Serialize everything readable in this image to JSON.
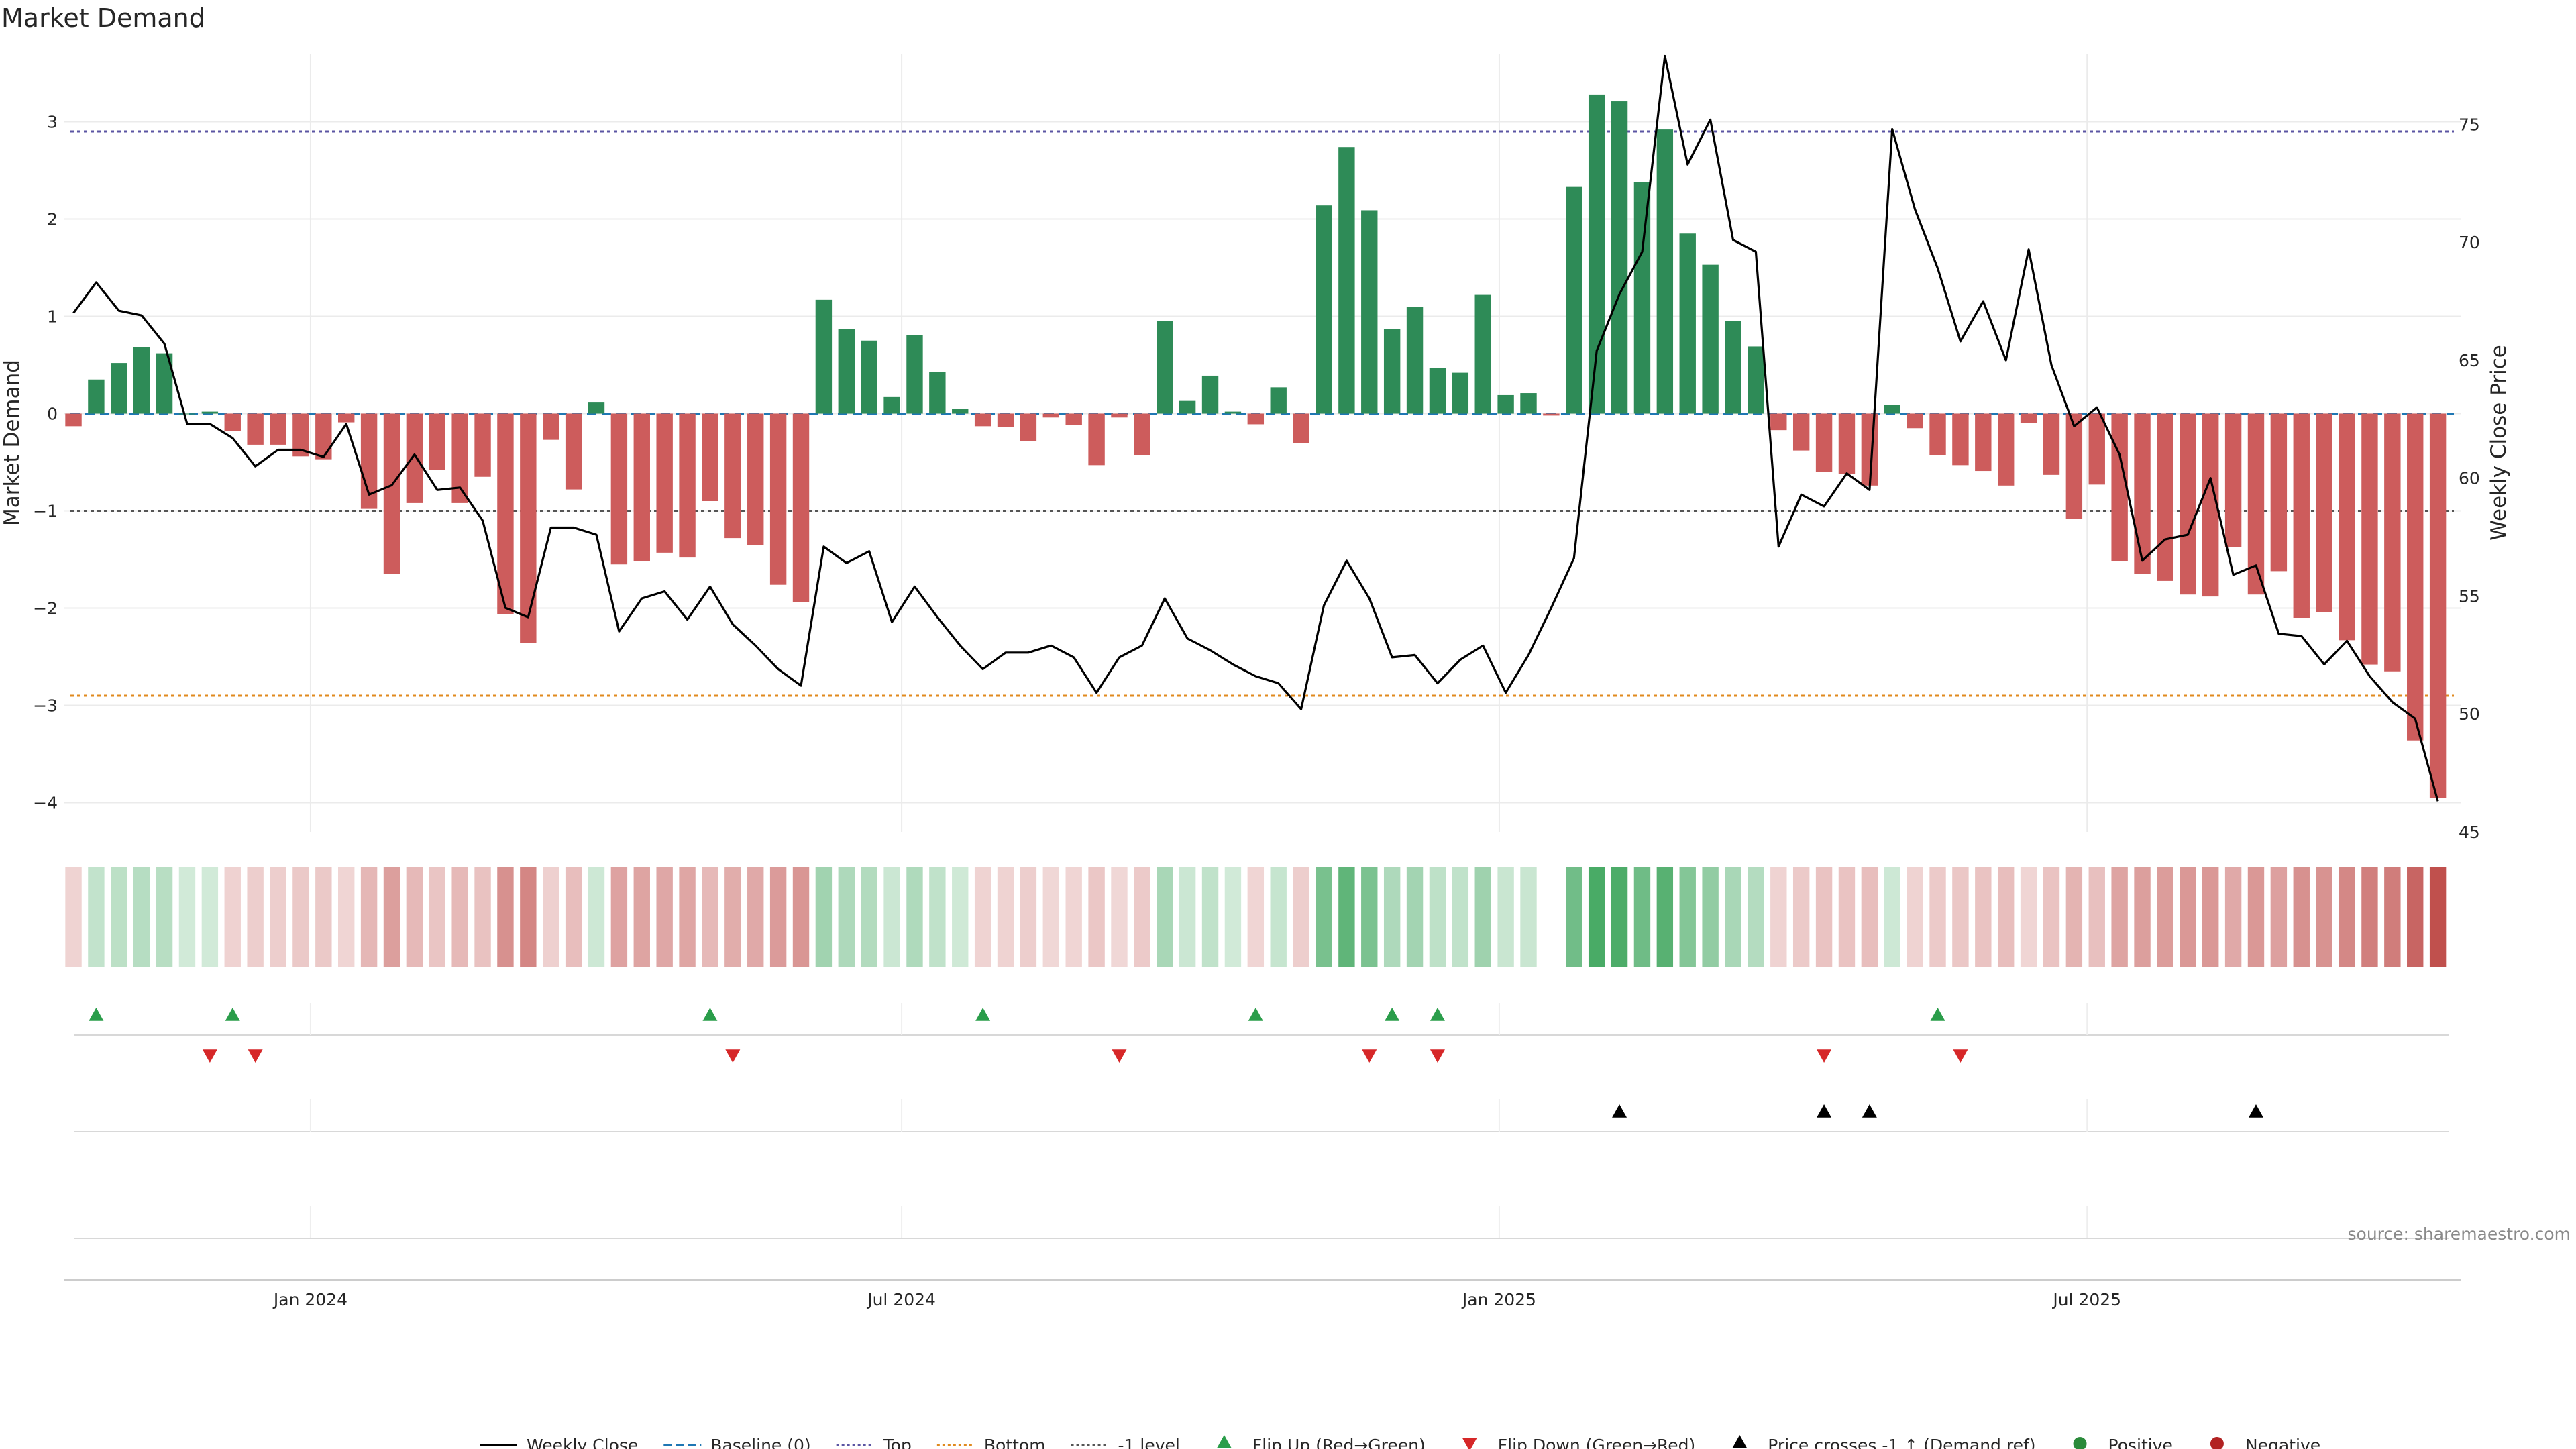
{
  "chart_data": {
    "type": "bar",
    "title": "Market Demand",
    "ylabel": "Market Demand",
    "y2label": "Weekly Close Price",
    "ylim": [
      -4.3,
      3.7
    ],
    "y2lim": [
      45,
      78
    ],
    "yticks": [
      -4,
      -3,
      -2,
      -1,
      0,
      1,
      2,
      3
    ],
    "y2ticks": [
      45,
      50,
      55,
      60,
      65,
      70,
      75
    ],
    "date_start": "2023-10-20",
    "week_interval_days": 7,
    "xlim": [
      "2023-10-17",
      "2025-10-24"
    ],
    "x_ticks": [
      {
        "label": "Jan 2024",
        "date": "2024-01-01"
      },
      {
        "label": "Jul 2024",
        "date": "2024-07-01"
      },
      {
        "label": "Jan 2025",
        "date": "2025-01-01"
      },
      {
        "label": "Jul 2025",
        "date": "2025-07-01"
      }
    ],
    "reference_lines": [
      {
        "name": "Baseline (0)",
        "value": 0,
        "color": "#1f77b4",
        "style": "dashed"
      },
      {
        "name": "Top",
        "value": 2.9,
        "color": "#5b55a3",
        "style": "dotted"
      },
      {
        "name": "Bottom",
        "value": -2.9,
        "color": "#e08a1e",
        "style": "dotted"
      },
      {
        "name": "-1 level",
        "value": -1,
        "color": "#555555",
        "style": "dotted"
      }
    ],
    "series": [
      {
        "name": "Market Demand",
        "type": "bar",
        "values": [
          -0.13,
          0.35,
          0.52,
          0.68,
          0.62,
          0,
          0.02,
          -0.18,
          -0.32,
          -0.32,
          -0.44,
          -0.47,
          -0.09,
          -0.98,
          -1.65,
          -0.92,
          -0.58,
          -0.92,
          -0.65,
          -2.06,
          -2.36,
          -0.27,
          -0.78,
          0.12,
          -1.55,
          -1.52,
          -1.43,
          -1.48,
          -0.9,
          -1.28,
          -1.35,
          -1.76,
          -1.94,
          1.17,
          0.87,
          0.75,
          0.17,
          0.81,
          0.43,
          0.05,
          -0.13,
          -0.14,
          -0.28,
          -0.04,
          -0.12,
          -0.53,
          -0.04,
          -0.43,
          0.95,
          0.13,
          0.39,
          0.02,
          -0.11,
          0.27,
          -0.3,
          2.14,
          2.74,
          2.09,
          0.87,
          1.1,
          0.47,
          0.42,
          1.22,
          0.19,
          0.21,
          -0.02,
          2.33,
          3.28,
          3.21,
          2.38,
          2.92,
          1.85,
          1.53,
          0.95,
          0.69,
          -0.17,
          -0.38,
          -0.6,
          -0.62,
          -0.74,
          0.09,
          -0.15,
          -0.43,
          -0.53,
          -0.59,
          -0.74,
          -0.1,
          -0.63,
          -1.08,
          -0.73,
          -1.52,
          -1.65,
          -1.72,
          -1.86,
          -1.88,
          -1.37,
          -1.86,
          -1.62,
          -2.1,
          -2.04,
          -2.33,
          -2.58,
          -2.65,
          -3.36,
          -3.95
        ]
      },
      {
        "name": "Weekly Close",
        "type": "line",
        "axis": "right",
        "values": [
          67.0,
          68.3,
          67.1,
          66.9,
          65.7,
          62.3,
          62.3,
          61.7,
          60.5,
          61.2,
          61.2,
          60.9,
          62.3,
          59.3,
          59.7,
          61.0,
          59.5,
          59.6,
          58.2,
          54.5,
          54.1,
          57.9,
          57.9,
          57.6,
          53.5,
          54.9,
          55.2,
          54.0,
          55.4,
          53.8,
          52.9,
          51.9,
          51.2,
          57.1,
          56.4,
          56.9,
          53.9,
          55.4,
          54.1,
          52.9,
          51.9,
          52.6,
          52.6,
          52.9,
          52.4,
          50.9,
          52.4,
          52.9,
          54.9,
          53.2,
          52.7,
          52.1,
          51.6,
          51.3,
          50.2,
          54.6,
          56.5,
          54.9,
          52.4,
          52.5,
          51.3,
          52.3,
          52.9,
          50.9,
          52.5,
          54.5,
          56.6,
          65.4,
          67.8,
          69.6,
          77.9,
          73.3,
          75.2,
          70.1,
          69.6,
          57.1,
          59.3,
          58.8,
          60.2,
          59.5,
          74.8,
          71.4,
          68.9,
          65.8,
          67.5,
          65.0,
          69.7,
          64.8,
          62.2,
          63.0,
          61.0,
          56.5,
          57.4,
          57.6,
          60.0,
          55.9,
          56.3,
          53.4,
          53.3,
          52.1,
          53.1,
          51.6,
          50.5,
          49.8,
          46.3
        ]
      }
    ],
    "heat_strip": {
      "start_index": 0,
      "missing_indices": [
        65
      ]
    },
    "markers": {
      "flip_up_dates": [
        "2023-10-27",
        "2023-12-08",
        "2024-05-03",
        "2024-07-26",
        "2024-10-18",
        "2024-11-29",
        "2024-12-13",
        "2025-05-16"
      ],
      "flip_down_dates": [
        "2023-12-01",
        "2023-12-15",
        "2024-05-10",
        "2024-09-06",
        "2024-11-22",
        "2024-12-13",
        "2025-04-11",
        "2025-05-23"
      ],
      "price_cross_dates": [
        "2025-02-07",
        "2025-04-11",
        "2025-04-25",
        "2025-08-22"
      ]
    },
    "legend": {
      "position": "bottom",
      "entries": [
        {
          "label": "Weekly Close",
          "kind": "line",
          "color": "#000000"
        },
        {
          "label": "Baseline (0)",
          "kind": "dashed",
          "color": "#1f77b4"
        },
        {
          "label": "Top",
          "kind": "dotted",
          "color": "#5b55a3"
        },
        {
          "label": "Bottom",
          "kind": "dotted",
          "color": "#e08a1e"
        },
        {
          "label": "-1 level",
          "kind": "dotted",
          "color": "#555555"
        },
        {
          "label": "Flip Up (Red→Green)",
          "kind": "tri-up",
          "color": "#2a9d4a"
        },
        {
          "label": "Flip Down (Green→Red)",
          "kind": "tri-down",
          "color": "#d62728"
        },
        {
          "label": "Price crosses -1 ↑ (Demand ref)",
          "kind": "tri-up",
          "color": "#000000"
        },
        {
          "label": "Positive",
          "kind": "dot",
          "color": "#2a8a3a"
        },
        {
          "label": "Negative",
          "kind": "dot",
          "color": "#b22222"
        }
      ]
    },
    "colors": {
      "positive": "#2e8b57",
      "negative": "#cd5c5c",
      "heat_pos": "#2e9e4f",
      "heat_neg": "#c0504d",
      "grid": "#ebebeb"
    },
    "grid": true
  },
  "footer": {
    "source": "source: sharemaestro.com"
  }
}
